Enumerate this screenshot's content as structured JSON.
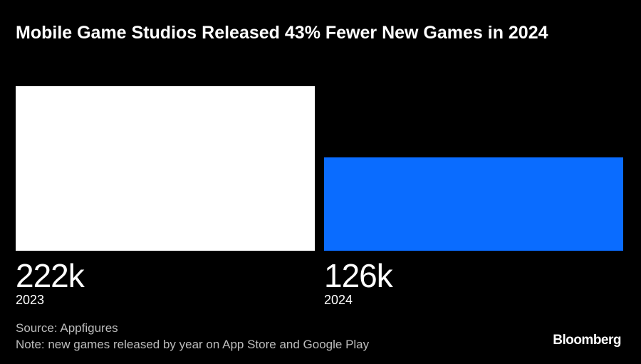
{
  "chart_data": {
    "type": "bar",
    "title": "Mobile Game Studios Released 43% Fewer New Games in 2024",
    "categories": [
      "2023",
      "2024"
    ],
    "values": [
      222000,
      126000
    ],
    "value_labels": [
      "222k",
      "126k"
    ],
    "colors": [
      "#ffffff",
      "#0a6cff"
    ],
    "source": "Source: Appfigures",
    "note": "Note: new games released by year on App Store and Google Play",
    "brand": "Bloomberg"
  }
}
